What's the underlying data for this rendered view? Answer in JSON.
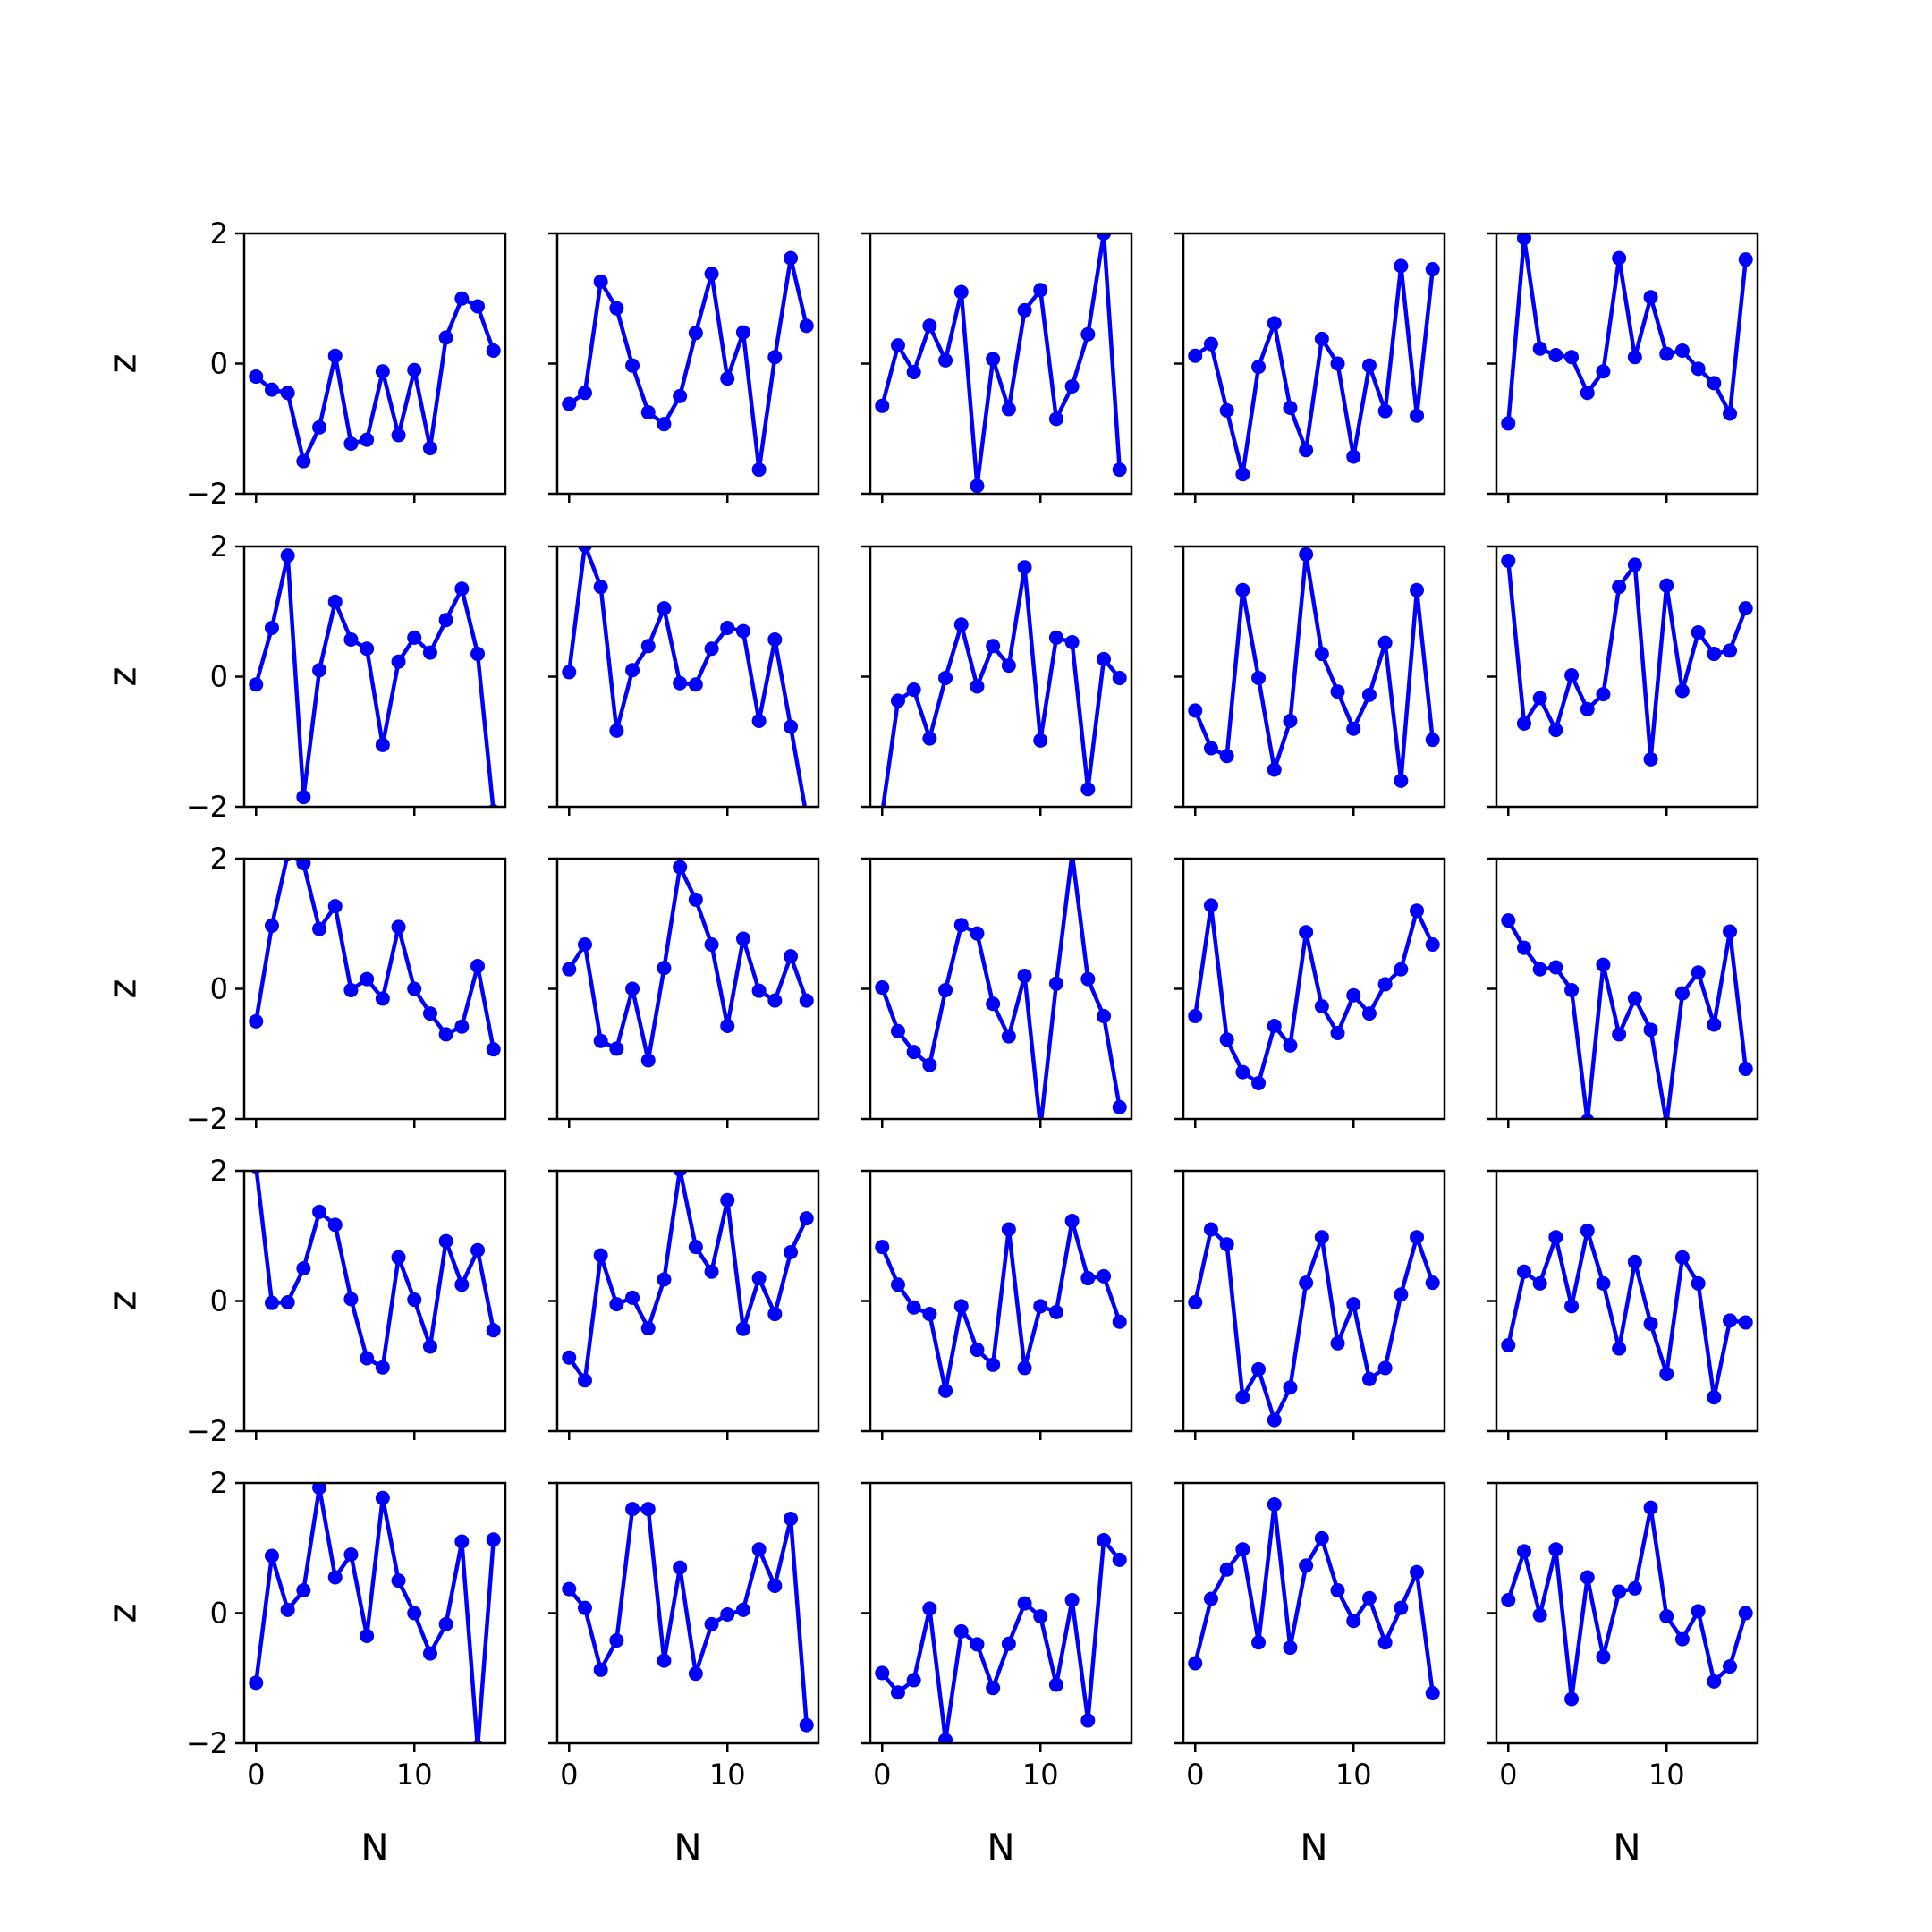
{
  "chart_data": {
    "type": "line",
    "layout": "grid",
    "rows": 5,
    "cols": 5,
    "xlabel": "N",
    "ylabel": "z",
    "xlim": [
      -0.75,
      15.75
    ],
    "ylim": [
      -2,
      2
    ],
    "xticks": [
      0,
      10
    ],
    "yticks": [
      -2,
      0,
      2
    ],
    "xtick_labels": [
      "0",
      "10"
    ],
    "ytick_labels": [
      "−2",
      "0",
      "2"
    ],
    "x": [
      0,
      1,
      2,
      3,
      4,
      5,
      6,
      7,
      8,
      9,
      10,
      11,
      12,
      13,
      14,
      15
    ],
    "line_color": "#0000ff",
    "marker": "circle",
    "grid": false,
    "panels": [
      {
        "values": [
          -0.2,
          -0.4,
          -0.45,
          -1.5,
          -0.98,
          0.12,
          -1.23,
          -1.17,
          -0.12,
          -1.1,
          -0.1,
          -1.3,
          0.4,
          1.0,
          0.88,
          0.2
        ]
      },
      {
        "values": [
          -0.62,
          -0.45,
          1.26,
          0.85,
          -0.03,
          -0.75,
          -0.93,
          -0.5,
          0.47,
          1.38,
          -0.23,
          0.48,
          -1.63,
          0.1,
          1.62,
          0.58
        ]
      },
      {
        "values": [
          -0.65,
          0.28,
          -0.13,
          0.58,
          0.05,
          1.1,
          -1.88,
          0.07,
          -0.7,
          0.82,
          1.13,
          -0.85,
          -0.35,
          0.45,
          2.0,
          -1.63
        ]
      },
      {
        "values": [
          0.12,
          0.3,
          -0.72,
          -1.7,
          -0.05,
          0.62,
          -0.68,
          -1.33,
          0.38,
          0.0,
          -1.43,
          -0.03,
          -0.73,
          1.5,
          -0.8,
          1.45
        ]
      },
      {
        "values": [
          -0.92,
          1.93,
          0.23,
          0.13,
          0.1,
          -0.45,
          -0.12,
          1.62,
          0.1,
          1.02,
          0.15,
          0.2,
          -0.08,
          -0.3,
          -0.77,
          1.6
        ]
      },
      {
        "values": [
          -0.12,
          0.75,
          1.86,
          -1.85,
          0.1,
          1.15,
          0.57,
          0.43,
          -1.05,
          0.23,
          0.6,
          0.37,
          0.87,
          1.35,
          0.35,
          -2.07
        ]
      },
      {
        "values": [
          0.07,
          2.02,
          1.38,
          -0.83,
          0.1,
          0.47,
          1.05,
          -0.1,
          -0.12,
          0.43,
          0.75,
          0.7,
          -0.68,
          0.57,
          -0.77,
          -2.15
        ]
      },
      {
        "values": [
          -2.1,
          -0.37,
          -0.2,
          -0.95,
          -0.02,
          0.8,
          -0.15,
          0.47,
          0.17,
          1.68,
          -0.98,
          0.6,
          0.53,
          -1.73,
          0.27,
          -0.02
        ]
      },
      {
        "values": [
          -0.52,
          -1.1,
          -1.22,
          1.33,
          -0.02,
          -1.43,
          -0.68,
          1.88,
          0.35,
          -0.23,
          -0.8,
          -0.28,
          0.52,
          -1.6,
          1.33,
          -0.97
        ]
      },
      {
        "values": [
          1.78,
          -0.72,
          -0.33,
          -0.82,
          0.02,
          -0.5,
          -0.27,
          1.38,
          1.72,
          -1.27,
          1.4,
          -0.22,
          0.68,
          0.35,
          0.4,
          1.05
        ]
      },
      {
        "values": [
          -0.5,
          0.97,
          2.07,
          1.93,
          0.92,
          1.27,
          -0.02,
          0.15,
          -0.15,
          0.95,
          0.0,
          -0.38,
          -0.7,
          -0.58,
          0.35,
          -0.93
        ]
      },
      {
        "values": [
          0.3,
          0.68,
          -0.8,
          -0.92,
          0.0,
          -1.1,
          0.32,
          1.87,
          1.37,
          0.68,
          -0.57,
          0.77,
          -0.03,
          -0.18,
          0.5,
          -0.18
        ]
      },
      {
        "values": [
          0.02,
          -0.65,
          -0.97,
          -1.17,
          -0.02,
          0.98,
          0.85,
          -0.23,
          -0.73,
          0.2,
          -2.13,
          0.08,
          2.08,
          0.15,
          -0.42,
          -1.82
        ]
      },
      {
        "values": [
          -0.42,
          1.28,
          -0.78,
          -1.28,
          -1.45,
          -0.57,
          -0.87,
          0.87,
          -0.27,
          -0.68,
          -0.1,
          -0.38,
          0.07,
          0.3,
          1.2,
          0.68
        ]
      },
      {
        "values": [
          1.05,
          0.63,
          0.3,
          0.33,
          -0.02,
          -2.03,
          0.37,
          -0.7,
          -0.15,
          -0.63,
          -2.07,
          -0.07,
          0.25,
          -0.55,
          0.88,
          -1.23
        ]
      },
      {
        "values": [
          2.07,
          -0.03,
          -0.02,
          0.5,
          1.37,
          1.17,
          0.03,
          -0.88,
          -1.02,
          0.67,
          0.02,
          -0.7,
          0.92,
          0.25,
          0.78,
          -0.45
        ]
      },
      {
        "values": [
          -0.87,
          -1.22,
          0.7,
          -0.05,
          0.05,
          -0.42,
          0.33,
          2.02,
          0.83,
          0.45,
          1.55,
          -0.43,
          0.35,
          -0.2,
          0.75,
          1.27
        ]
      },
      {
        "values": [
          0.83,
          0.25,
          -0.1,
          -0.2,
          -1.38,
          -0.08,
          -0.75,
          -0.98,
          1.1,
          -1.03,
          -0.08,
          -0.17,
          1.23,
          0.35,
          0.38,
          -0.32
        ]
      },
      {
        "values": [
          -0.02,
          1.1,
          0.87,
          -1.48,
          -1.05,
          -1.83,
          -1.33,
          0.28,
          0.98,
          -0.65,
          -0.05,
          -1.2,
          -1.03,
          0.1,
          0.98,
          0.28
        ]
      },
      {
        "values": [
          -0.68,
          0.45,
          0.27,
          0.98,
          -0.08,
          1.08,
          0.27,
          -0.73,
          0.6,
          -0.35,
          -1.12,
          0.67,
          0.27,
          -1.48,
          -0.3,
          -0.33
        ]
      },
      {
        "values": [
          -1.07,
          0.88,
          0.05,
          0.35,
          1.93,
          0.55,
          0.9,
          -0.35,
          1.77,
          0.5,
          0.0,
          -0.62,
          -0.17,
          1.1,
          -2.07,
          1.13
        ]
      },
      {
        "values": [
          0.37,
          0.08,
          -0.87,
          -0.42,
          1.6,
          1.6,
          -0.73,
          0.7,
          -0.93,
          -0.17,
          -0.02,
          0.05,
          0.98,
          0.42,
          1.45,
          -1.72
        ]
      },
      {
        "values": [
          -0.92,
          -1.22,
          -1.03,
          0.07,
          -1.95,
          -0.28,
          -0.48,
          -1.15,
          -0.47,
          0.15,
          -0.05,
          -1.1,
          0.2,
          -1.65,
          1.12,
          0.82
        ]
      },
      {
        "values": [
          -0.77,
          0.22,
          0.67,
          0.98,
          -0.45,
          1.67,
          -0.53,
          0.73,
          1.15,
          0.35,
          -0.12,
          0.23,
          -0.45,
          0.08,
          0.63,
          -1.23
        ]
      },
      {
        "values": [
          0.2,
          0.95,
          -0.03,
          0.98,
          -1.32,
          0.55,
          -0.67,
          0.33,
          0.38,
          1.62,
          -0.05,
          -0.4,
          0.03,
          -1.05,
          -0.82,
          0.0
        ]
      }
    ]
  }
}
